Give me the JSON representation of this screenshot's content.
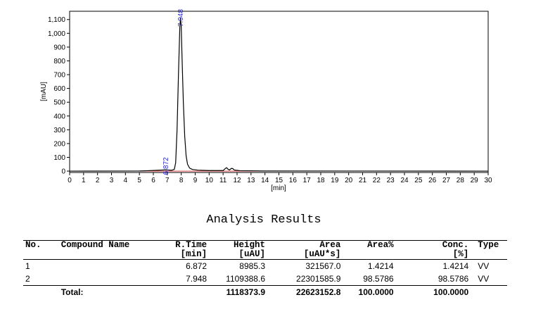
{
  "chart_data": {
    "type": "line",
    "xlabel": "[min]",
    "ylabel": "[mAU]",
    "xlim": [
      0,
      30
    ],
    "ylim": [
      -10,
      1160
    ],
    "x_ticks": [
      "0",
      "1",
      "2",
      "3",
      "4",
      "5",
      "6",
      "7",
      "8",
      "9",
      "10",
      "11",
      "12",
      "13",
      "14",
      "15",
      "16",
      "17",
      "18",
      "19",
      "20",
      "21",
      "22",
      "23",
      "24",
      "25",
      "26",
      "27",
      "28",
      "29",
      "30"
    ],
    "y_ticks": [
      "0",
      "100",
      "200",
      "300",
      "400",
      "500",
      "600",
      "700",
      "800",
      "900",
      "1,000",
      "1,100"
    ],
    "series": [
      {
        "points": [
          [
            0,
            0
          ],
          [
            5,
            1
          ],
          [
            5.6,
            3
          ],
          [
            6.3,
            6
          ],
          [
            6.7,
            8
          ],
          [
            6.87,
            9
          ],
          [
            7.05,
            8
          ],
          [
            7.3,
            6
          ],
          [
            7.5,
            12
          ],
          [
            7.6,
            60
          ],
          [
            7.7,
            300
          ],
          [
            7.8,
            700
          ],
          [
            7.9,
            1050
          ],
          [
            7.948,
            1109
          ],
          [
            8.0,
            1050
          ],
          [
            8.05,
            850
          ],
          [
            8.15,
            500
          ],
          [
            8.25,
            250
          ],
          [
            8.35,
            110
          ],
          [
            8.45,
            50
          ],
          [
            8.6,
            22
          ],
          [
            8.8,
            12
          ],
          [
            9.2,
            7
          ],
          [
            10,
            4
          ],
          [
            11.0,
            4
          ],
          [
            11.15,
            18
          ],
          [
            11.25,
            25
          ],
          [
            11.35,
            14
          ],
          [
            11.45,
            8
          ],
          [
            11.6,
            20
          ],
          [
            11.7,
            18
          ],
          [
            11.8,
            8
          ],
          [
            12.2,
            3
          ],
          [
            14,
            1
          ],
          [
            30,
            0
          ]
        ]
      }
    ],
    "peak_labels": [
      {
        "x": 6.872,
        "y": 9,
        "text": "6.872"
      },
      {
        "x": 7.948,
        "y": 1109,
        "text": "7.948"
      }
    ]
  },
  "results": {
    "title": "Analysis Results",
    "headers": {
      "no": "No.",
      "compound": "Compound Name",
      "rtime": [
        "R.Time",
        "[min]"
      ],
      "height": [
        "Height",
        "[uAU]"
      ],
      "area": [
        "Area",
        "[uAU*s]"
      ],
      "area_pct": "Area%",
      "conc": [
        "Conc.",
        "[%]"
      ],
      "type": "Type"
    },
    "rows": [
      {
        "no": "1",
        "compound": "",
        "rtime": "6.872",
        "height": "8985.3",
        "area": "321567.0",
        "area_pct": "1.4214",
        "conc": "1.4214",
        "type": "VV"
      },
      {
        "no": "2",
        "compound": "",
        "rtime": "7.948",
        "height": "1109388.6",
        "area": "22301585.9",
        "area_pct": "98.5786",
        "conc": "98.5786",
        "type": "VV"
      }
    ],
    "total": {
      "label": "Total:",
      "height": "1118373.9",
      "area": "22623152.8",
      "area_pct": "100.0000",
      "conc": "100.0000"
    }
  }
}
